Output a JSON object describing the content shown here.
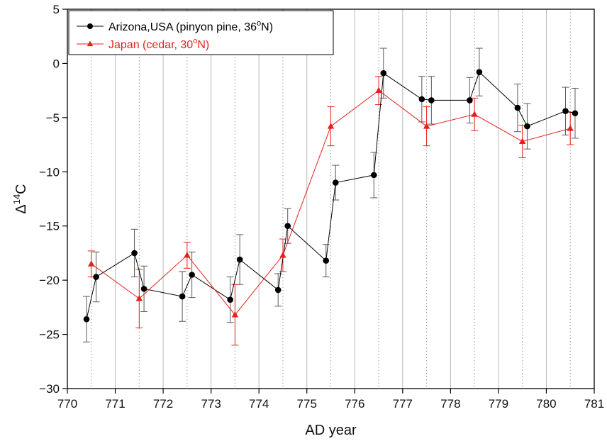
{
  "chart_data": {
    "type": "line",
    "xlabel": "AD year",
    "ylabel_main": "Δ",
    "ylabel_sup": "14",
    "ylabel_tail": "C",
    "xlim": [
      770,
      781
    ],
    "ylim": [
      -30,
      5
    ],
    "x_ticks": [
      770,
      771,
      772,
      773,
      774,
      775,
      776,
      777,
      778,
      779,
      780,
      781
    ],
    "y_ticks": [
      5,
      0,
      -5,
      -10,
      -15,
      -20,
      -25,
      -30
    ],
    "grid": "vertical-lines",
    "legend_position": "top-left",
    "series": [
      {
        "legend_main": "Arizona,USA (pinyon pine, 36",
        "legend_sup": "o",
        "legend_tail": "N)",
        "color": "#000000",
        "marker": "circle",
        "points": [
          {
            "x": 770.4,
            "y": -23.6,
            "err": 2.1
          },
          {
            "x": 770.6,
            "y": -19.7,
            "err": 2.3
          },
          {
            "x": 771.4,
            "y": -17.5,
            "err": 2.2
          },
          {
            "x": 771.6,
            "y": -20.8,
            "err": 2.1
          },
          {
            "x": 772.4,
            "y": -21.5,
            "err": 2.3
          },
          {
            "x": 772.6,
            "y": -19.5,
            "err": 2.1
          },
          {
            "x": 773.4,
            "y": -21.8,
            "err": 2.1
          },
          {
            "x": 773.6,
            "y": -18.1,
            "err": 2.3
          },
          {
            "x": 774.4,
            "y": -20.9,
            "err": 1.5
          },
          {
            "x": 774.6,
            "y": -15.0,
            "err": 1.6
          },
          {
            "x": 775.4,
            "y": -18.2,
            "err": 1.5
          },
          {
            "x": 775.6,
            "y": -11.0,
            "err": 1.6
          },
          {
            "x": 776.4,
            "y": -10.3,
            "err": 2.1
          },
          {
            "x": 776.6,
            "y": -0.9,
            "err": 2.3
          },
          {
            "x": 777.4,
            "y": -3.3,
            "err": 2.1
          },
          {
            "x": 777.6,
            "y": -3.4,
            "err": 2.2
          },
          {
            "x": 778.4,
            "y": -3.4,
            "err": 2.1
          },
          {
            "x": 778.6,
            "y": -0.8,
            "err": 2.2
          },
          {
            "x": 779.4,
            "y": -4.1,
            "err": 2.2
          },
          {
            "x": 779.6,
            "y": -5.8,
            "err": 2.1
          },
          {
            "x": 780.4,
            "y": -4.4,
            "err": 2.2
          },
          {
            "x": 780.6,
            "y": -4.6,
            "err": 2.3
          }
        ]
      },
      {
        "legend_main": "Japan (cedar, 30",
        "legend_sup": "o",
        "legend_tail": "N)",
        "color": "#e8201c",
        "marker": "triangle",
        "points": [
          {
            "x": 770.5,
            "y": -18.5,
            "err": 1.2
          },
          {
            "x": 771.5,
            "y": -21.7,
            "err": 2.7
          },
          {
            "x": 772.5,
            "y": -17.7,
            "err": 1.2
          },
          {
            "x": 773.5,
            "y": -23.2,
            "err": 2.8
          },
          {
            "x": 774.5,
            "y": -17.7,
            "err": 1.5
          },
          {
            "x": 775.5,
            "y": -5.8,
            "err": 1.8
          },
          {
            "x": 776.5,
            "y": -2.5,
            "err": 1.3
          },
          {
            "x": 777.5,
            "y": -5.8,
            "err": 1.8
          },
          {
            "x": 778.5,
            "y": -4.7,
            "err": 1.5
          },
          {
            "x": 779.5,
            "y": -7.2,
            "err": 1.5
          },
          {
            "x": 780.5,
            "y": -6.0,
            "err": 1.5
          }
        ]
      }
    ]
  }
}
